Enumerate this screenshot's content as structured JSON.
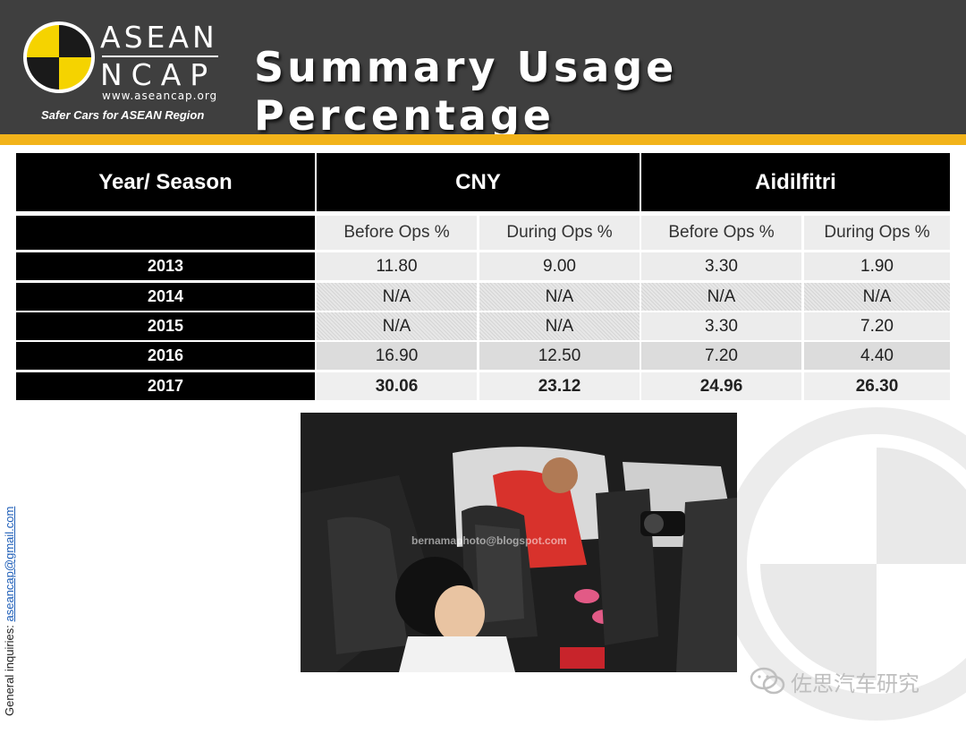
{
  "header": {
    "brand_line1": "ASEAN",
    "brand_line2": "NCAP",
    "brand_url": "www.aseancap.org",
    "tagline": "Safer Cars for ASEAN Region",
    "title": "Summary Usage Percentage"
  },
  "colors": {
    "header_bg": "#3f3f3f",
    "accent": "#f2b31a",
    "logo_yellow": "#f5d300"
  },
  "table": {
    "corner_label": "Year/ Season",
    "groups": [
      "CNY",
      "Aidilfitri"
    ],
    "subheaders": [
      "Before Ops %",
      "During Ops %",
      "Before Ops %",
      "During Ops %"
    ],
    "rows": [
      {
        "year": "2013",
        "values": [
          "11.80",
          "9.00",
          "3.30",
          "1.90"
        ]
      },
      {
        "year": "2014",
        "values": [
          "N/A",
          "N/A",
          "N/A",
          "N/A"
        ]
      },
      {
        "year": "2015",
        "values": [
          "N/A",
          "N/A",
          "3.30",
          "7.20"
        ]
      },
      {
        "year": "2016",
        "values": [
          "16.90",
          "12.50",
          "7.20",
          "4.40"
        ]
      },
      {
        "year": "2017",
        "values": [
          "30.06",
          "23.12",
          "24.96",
          "26.30"
        ]
      }
    ]
  },
  "photo": {
    "watermark": "bernamaphoto@blogspot.com"
  },
  "side": {
    "label": "General inquiries:",
    "email": "aseancap@gmail.com"
  },
  "watermark": {
    "text": "佐思汽车研究",
    "icon": "wechat-icon"
  }
}
